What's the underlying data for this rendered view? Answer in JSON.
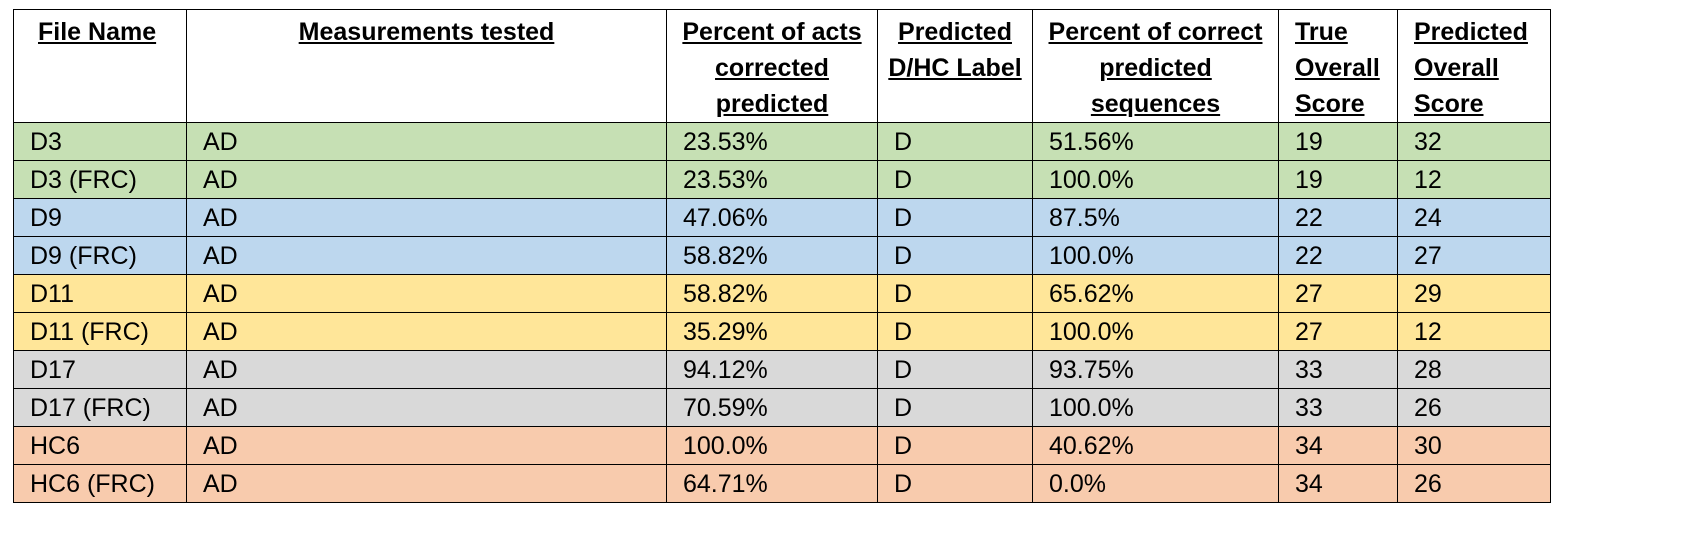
{
  "table": {
    "headers": [
      "File Name",
      "Measurements tested",
      "Percent of acts corrected predicted",
      "Predicted D/HC Label",
      "Percent of correct predicted sequences",
      "True Overall Score",
      "Predicted Overall Score"
    ],
    "rows": [
      {
        "cells": [
          "D3",
          "AD",
          "23.53%",
          "D",
          "51.56%",
          "19",
          "32"
        ],
        "color": "#c6e0b4"
      },
      {
        "cells": [
          "D3 (FRC)",
          "AD",
          "23.53%",
          "D",
          "100.0%",
          "19",
          "12"
        ],
        "color": "#c6e0b4"
      },
      {
        "cells": [
          "D9",
          "AD",
          "47.06%",
          "D",
          "87.5%",
          "22",
          "24"
        ],
        "color": "#bdd7ee"
      },
      {
        "cells": [
          "D9 (FRC)",
          "AD",
          "58.82%",
          "D",
          "100.0%",
          "22",
          "27"
        ],
        "color": "#bdd7ee"
      },
      {
        "cells": [
          "D11",
          "AD",
          "58.82%",
          "D",
          "65.62%",
          "27",
          "29"
        ],
        "color": "#ffe699"
      },
      {
        "cells": [
          "D11 (FRC)",
          "AD",
          "35.29%",
          "D",
          "100.0%",
          "27",
          "12"
        ],
        "color": "#ffe699"
      },
      {
        "cells": [
          "D17",
          "AD",
          "94.12%",
          "D",
          "93.75%",
          "33",
          "28"
        ],
        "color": "#d9d9d9"
      },
      {
        "cells": [
          "D17 (FRC)",
          "AD",
          "70.59%",
          "D",
          "100.0%",
          "33",
          "26"
        ],
        "color": "#d9d9d9"
      },
      {
        "cells": [
          "HC6",
          "AD",
          "100.0%",
          "D",
          "40.62%",
          "34",
          "30"
        ],
        "color": "#f8cbad"
      },
      {
        "cells": [
          "HC6 (FRC)",
          "AD",
          "64.71%",
          "D",
          "0.0%",
          "34",
          "26"
        ],
        "color": "#f8cbad"
      }
    ]
  }
}
